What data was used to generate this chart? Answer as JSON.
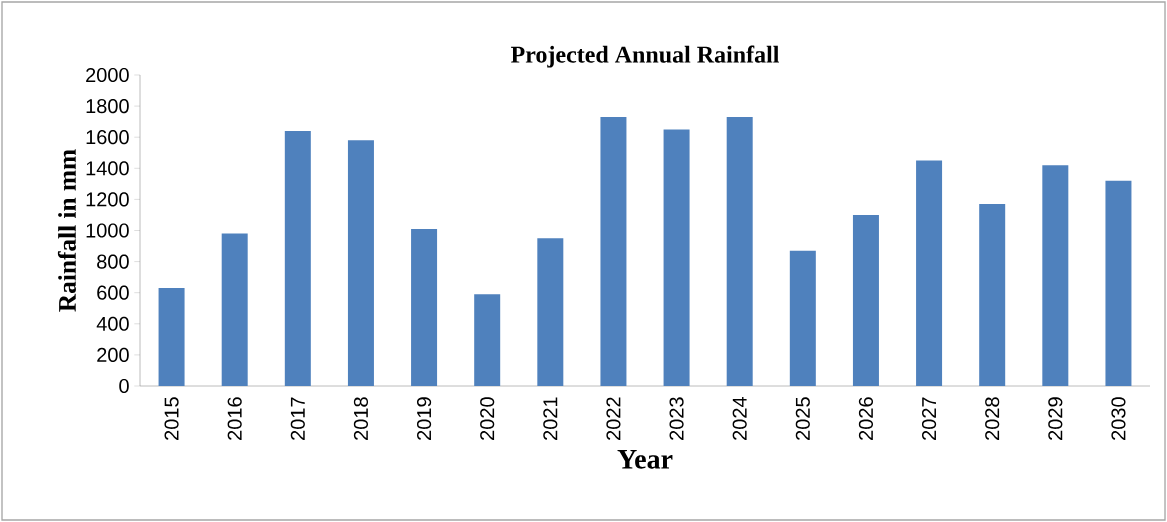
{
  "chart_data": {
    "type": "bar",
    "title": "Projected Annual Rainfall",
    "xlabel": "Year",
    "ylabel": "Rainfall in mm",
    "categories": [
      "2015",
      "2016",
      "2017",
      "2018",
      "2019",
      "2020",
      "2021",
      "2022",
      "2023",
      "2024",
      "2025",
      "2026",
      "2027",
      "2028",
      "2029",
      "2030"
    ],
    "values": [
      630,
      980,
      1640,
      1580,
      1010,
      590,
      950,
      1730,
      1650,
      1730,
      870,
      1100,
      1450,
      1170,
      1420,
      1320
    ],
    "color": "#4f81bd",
    "ylim": [
      0,
      2000
    ],
    "yticks": [
      0,
      200,
      400,
      600,
      800,
      1000,
      1200,
      1400,
      1600,
      1800,
      2000
    ],
    "grid": false
  }
}
